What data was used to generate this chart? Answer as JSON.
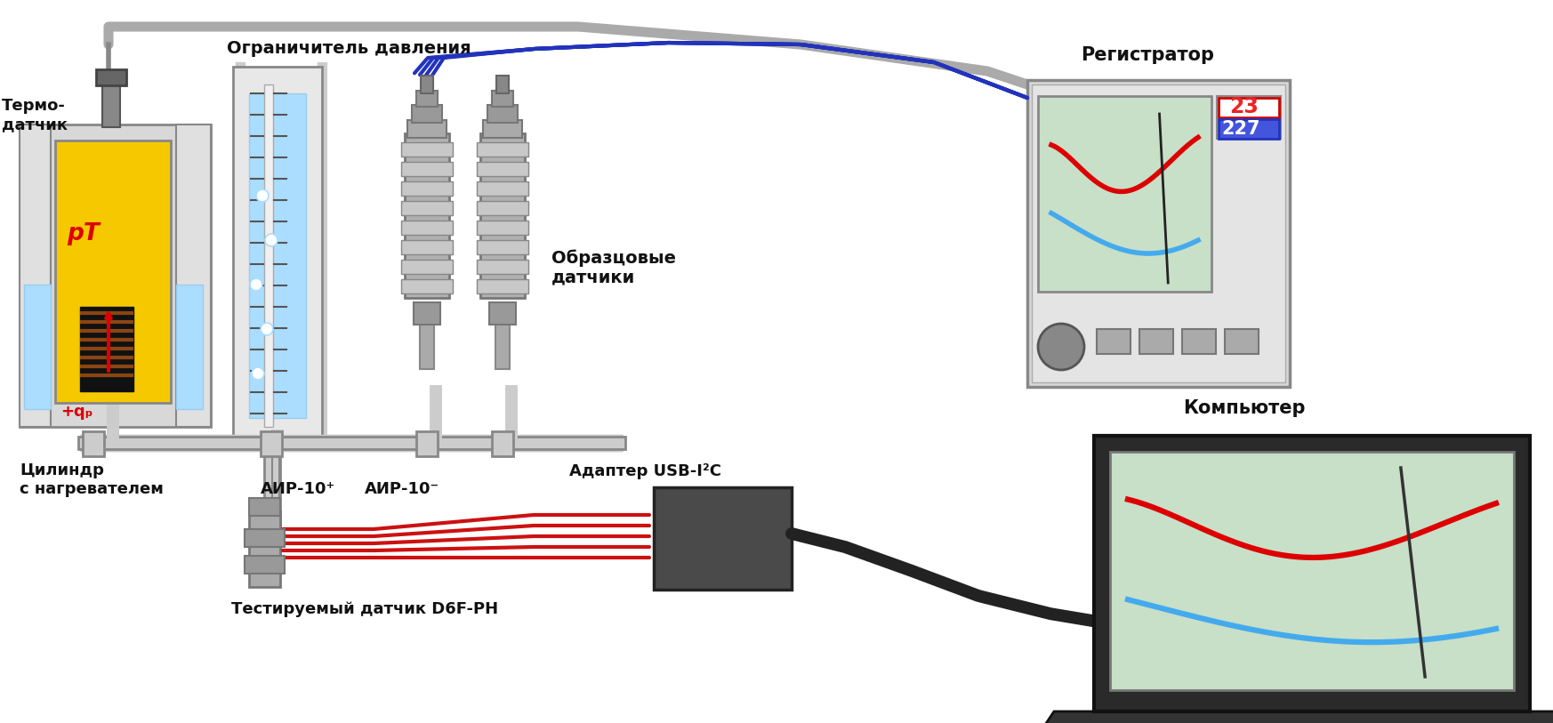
{
  "bg_color": "#ffffff",
  "label_thermocouple": "Термо-\nдатчик",
  "label_cylinder": "Цилиндр\nс нагревателем",
  "label_limiter": "Ограничитель давления",
  "label_ref_sensors": "Образцовые\nдатчики",
  "label_air_plus": "АИР-10⁺",
  "label_air_minus": "АИР-10⁻",
  "label_adapter": "Адаптер USB-I²C",
  "label_test_sensor": "Тестируемый датчик D6F-PH",
  "label_registrator": "Регистратор",
  "label_computer": "Компьютер",
  "label_pT": "pТ",
  "label_qp": "+qₚ",
  "reg_num1": "23",
  "reg_num2": "227",
  "wire_gray": "#aaaaaa",
  "wire_blue": "#2233bb",
  "wire_red": "#cc1111",
  "yellow": "#f5c800",
  "light_gray": "#d8d8d8",
  "mid_gray": "#aaaaaa",
  "water_blue": "#aaddff",
  "dark_gray": "#555555",
  "reg_screen": "#c8dfc8",
  "red_disp": "#ee2222",
  "blue_disp": "#4455dd",
  "brown": "#8B4513",
  "sensor_gray": "#b0b0b0",
  "adapter_dark": "#4a4a4a"
}
